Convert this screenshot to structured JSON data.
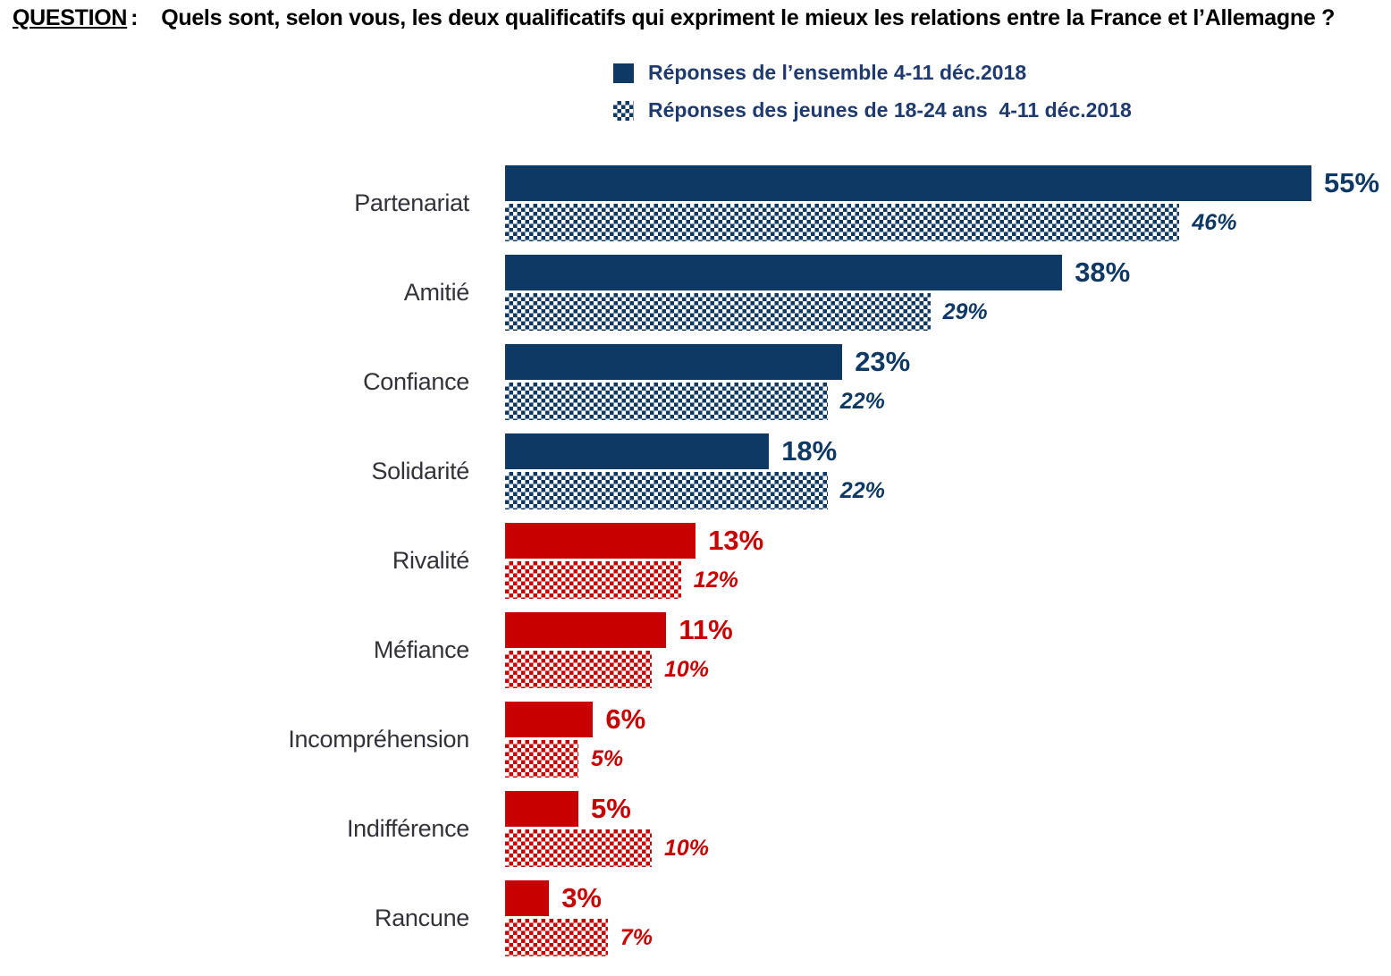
{
  "title": {
    "label": "QUESTION",
    "colon": ":",
    "text": "Quels sont, selon vous, les deux qualificatifs qui expriment le mieux les relations entre la France et l’Allemagne ?"
  },
  "legend": {
    "items": [
      {
        "label": "Réponses de l’ensemble 4-11 déc.2018",
        "swatch": "solid"
      },
      {
        "label": "Réponses des jeunes de 18-24 ans  4-11 déc.2018",
        "swatch": "checker"
      }
    ]
  },
  "colors": {
    "blue": "#0E3964",
    "red": "#C90000",
    "legend_text": "#1E3A6E",
    "category_label": "#33323B"
  },
  "chart_data": {
    "type": "bar",
    "orientation": "horizontal",
    "unit": "%",
    "xlim": [
      0,
      60
    ],
    "grid": false,
    "legend_position": "top",
    "categories": [
      "Partenariat",
      "Amitié",
      "Confiance",
      "Solidarité",
      "Rivalité",
      "Méfiance",
      "Incompréhension",
      "Indifférence",
      "Rancune"
    ],
    "series": [
      {
        "name": "Réponses de l’ensemble 4-11 déc.2018",
        "style": "solid",
        "values": [
          55,
          38,
          23,
          18,
          13,
          11,
          6,
          5,
          3
        ]
      },
      {
        "name": "Réponses des jeunes de 18-24 ans 4-11 déc.2018",
        "style": "checker",
        "values": [
          46,
          29,
          22,
          22,
          12,
          10,
          5,
          10,
          7
        ]
      }
    ],
    "category_colors": [
      "blue",
      "blue",
      "blue",
      "blue",
      "red",
      "red",
      "red",
      "red",
      "red"
    ],
    "value_label_format": "{v}%"
  }
}
